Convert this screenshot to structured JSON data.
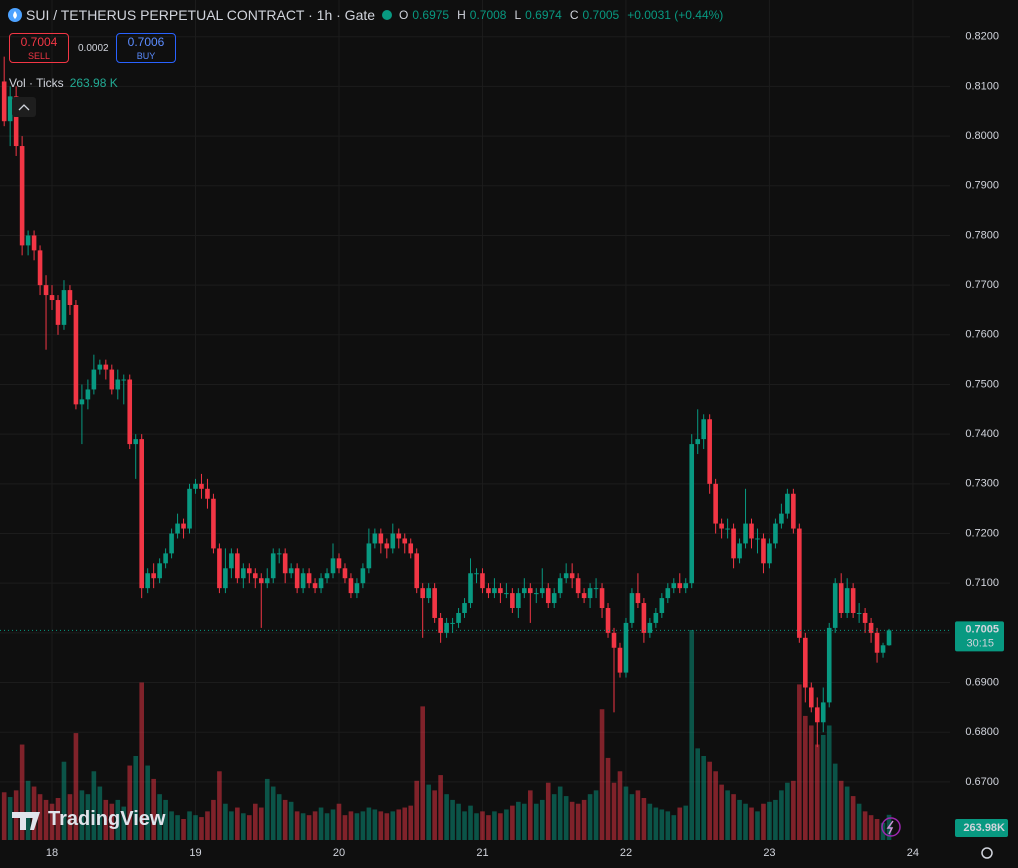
{
  "header": {
    "title": "SUI / TETHERUS PERPETUAL CONTRACT · 1h · Gate",
    "o_key": "O",
    "o": "0.6975",
    "h_key": "H",
    "h": "0.7008",
    "l_key": "L",
    "l": "0.6974",
    "c_key": "C",
    "c": "0.7005",
    "change": "+0.0031 (+0.44%)"
  },
  "trade": {
    "sell_price": "0.7004",
    "sell": "SELL",
    "spread": "0.0002",
    "buy_price": "0.7006",
    "buy": "BUY"
  },
  "volume_legend": {
    "label": "Vol · Ticks",
    "value": "263.98 K"
  },
  "brand": "TradingView",
  "chart_data": {
    "type": "candlestick",
    "x": [
      -8,
      -7,
      -6,
      -5,
      -4,
      -3,
      -2,
      -1,
      0,
      1,
      2,
      3,
      4,
      5,
      6,
      7,
      8,
      9,
      10,
      11,
      12,
      13,
      14,
      15,
      16,
      17,
      18,
      19,
      20,
      21,
      22,
      23,
      24,
      25,
      26,
      27,
      28,
      29,
      30,
      31,
      32,
      33,
      34,
      35,
      36,
      37,
      38,
      39,
      40,
      41,
      42,
      43,
      44,
      45,
      46,
      47,
      48,
      49,
      50,
      51,
      52,
      53,
      54,
      55,
      56,
      57,
      58,
      59,
      60,
      61,
      62,
      63,
      64,
      65,
      66,
      67,
      68,
      69,
      70,
      71,
      72,
      73,
      74,
      75,
      76,
      77,
      78,
      79,
      80,
      81,
      82,
      83,
      84,
      85,
      86,
      87,
      88,
      89,
      90,
      91,
      92,
      93,
      94,
      95,
      96,
      97,
      98,
      99,
      100,
      101,
      102,
      103,
      104,
      105,
      106,
      107,
      108,
      109,
      110,
      111,
      112,
      113,
      114,
      115,
      116,
      117,
      118,
      119,
      120,
      121,
      122,
      123,
      124,
      125,
      126,
      127,
      128,
      129,
      130,
      131,
      132,
      133,
      134,
      135,
      136,
      137,
      138,
      139,
      140
    ],
    "open": [
      0.811,
      0.803,
      0.808,
      0.798,
      0.778,
      0.78,
      0.777,
      0.77,
      0.768,
      0.767,
      0.762,
      0.769,
      0.766,
      0.746,
      0.747,
      0.749,
      0.753,
      0.754,
      0.753,
      0.749,
      0.751,
      0.751,
      0.738,
      0.739,
      0.709,
      0.712,
      0.711,
      0.714,
      0.716,
      0.72,
      0.722,
      0.721,
      0.729,
      0.73,
      0.729,
      0.727,
      0.717,
      0.709,
      0.713,
      0.716,
      0.711,
      0.713,
      0.712,
      0.711,
      0.71,
      0.711,
      0.716,
      0.716,
      0.712,
      0.713,
      0.709,
      0.712,
      0.71,
      0.709,
      0.711,
      0.712,
      0.715,
      0.713,
      0.711,
      0.708,
      0.71,
      0.713,
      0.718,
      0.72,
      0.718,
      0.717,
      0.72,
      0.719,
      0.718,
      0.716,
      0.709,
      0.707,
      0.709,
      0.703,
      0.7,
      0.702,
      0.702,
      0.704,
      0.706,
      0.712,
      0.712,
      0.709,
      0.708,
      0.709,
      0.708,
      0.708,
      0.705,
      0.708,
      0.709,
      0.708,
      0.708,
      0.709,
      0.706,
      0.708,
      0.711,
      0.712,
      0.711,
      0.708,
      0.707,
      0.709,
      0.709,
      0.705,
      0.7,
      0.697,
      0.692,
      0.702,
      0.708,
      0.706,
      0.7,
      0.702,
      0.704,
      0.707,
      0.709,
      0.71,
      0.709,
      0.71,
      0.738,
      0.739,
      0.743,
      0.73,
      0.722,
      0.721,
      0.721,
      0.715,
      0.718,
      0.722,
      0.719,
      0.719,
      0.714,
      0.718,
      0.722,
      0.724,
      0.728,
      0.721,
      0.699,
      0.689,
      0.685,
      0.682,
      0.686,
      0.701,
      0.71,
      0.704,
      0.709,
      0.704,
      0.704,
      0.702,
      0.7,
      0.696,
      0.6975
    ],
    "high": [
      0.816,
      0.81,
      0.81,
      0.8,
      0.781,
      0.781,
      0.778,
      0.772,
      0.77,
      0.768,
      0.771,
      0.77,
      0.767,
      0.75,
      0.751,
      0.756,
      0.755,
      0.755,
      0.754,
      0.753,
      0.752,
      0.752,
      0.74,
      0.74,
      0.713,
      0.714,
      0.715,
      0.717,
      0.721,
      0.724,
      0.723,
      0.73,
      0.731,
      0.732,
      0.731,
      0.728,
      0.718,
      0.717,
      0.717,
      0.717,
      0.714,
      0.714,
      0.713,
      0.712,
      0.713,
      0.717,
      0.717,
      0.717,
      0.714,
      0.714,
      0.713,
      0.713,
      0.711,
      0.712,
      0.713,
      0.718,
      0.716,
      0.714,
      0.712,
      0.711,
      0.714,
      0.721,
      0.721,
      0.721,
      0.719,
      0.722,
      0.721,
      0.72,
      0.719,
      0.717,
      0.71,
      0.71,
      0.71,
      0.704,
      0.703,
      0.703,
      0.705,
      0.707,
      0.715,
      0.713,
      0.713,
      0.71,
      0.711,
      0.71,
      0.71,
      0.709,
      0.709,
      0.711,
      0.71,
      0.709,
      0.713,
      0.71,
      0.709,
      0.712,
      0.714,
      0.714,
      0.712,
      0.709,
      0.71,
      0.711,
      0.71,
      0.706,
      0.701,
      0.698,
      0.703,
      0.709,
      0.712,
      0.707,
      0.703,
      0.705,
      0.708,
      0.71,
      0.711,
      0.712,
      0.711,
      0.74,
      0.745,
      0.744,
      0.744,
      0.731,
      0.723,
      0.723,
      0.722,
      0.719,
      0.729,
      0.723,
      0.721,
      0.72,
      0.719,
      0.723,
      0.726,
      0.729,
      0.729,
      0.722,
      0.7,
      0.69,
      0.687,
      0.689,
      0.702,
      0.711,
      0.712,
      0.711,
      0.71,
      0.706,
      0.705,
      0.703,
      0.701,
      0.698,
      0.7008
    ],
    "low": [
      0.802,
      0.798,
      0.796,
      0.776,
      0.776,
      0.775,
      0.768,
      0.757,
      0.765,
      0.76,
      0.761,
      0.764,
      0.745,
      0.738,
      0.745,
      0.748,
      0.752,
      0.751,
      0.748,
      0.747,
      0.746,
      0.737,
      0.731,
      0.707,
      0.708,
      0.709,
      0.71,
      0.713,
      0.715,
      0.719,
      0.719,
      0.72,
      0.728,
      0.727,
      0.725,
      0.716,
      0.708,
      0.708,
      0.711,
      0.71,
      0.709,
      0.71,
      0.709,
      0.701,
      0.709,
      0.71,
      0.714,
      0.71,
      0.711,
      0.708,
      0.708,
      0.709,
      0.708,
      0.708,
      0.71,
      0.711,
      0.712,
      0.71,
      0.707,
      0.707,
      0.709,
      0.712,
      0.717,
      0.716,
      0.715,
      0.716,
      0.717,
      0.716,
      0.715,
      0.708,
      0.699,
      0.706,
      0.702,
      0.698,
      0.699,
      0.7,
      0.701,
      0.703,
      0.705,
      0.71,
      0.708,
      0.707,
      0.707,
      0.706,
      0.707,
      0.704,
      0.703,
      0.707,
      0.702,
      0.706,
      0.707,
      0.705,
      0.705,
      0.707,
      0.71,
      0.709,
      0.707,
      0.706,
      0.705,
      0.707,
      0.703,
      0.699,
      0.684,
      0.691,
      0.691,
      0.701,
      0.705,
      0.698,
      0.699,
      0.701,
      0.703,
      0.706,
      0.708,
      0.708,
      0.708,
      0.709,
      0.736,
      0.737,
      0.728,
      0.72,
      0.719,
      0.719,
      0.713,
      0.714,
      0.717,
      0.717,
      0.716,
      0.712,
      0.713,
      0.717,
      0.721,
      0.723,
      0.72,
      0.698,
      0.686,
      0.684,
      0.677,
      0.68,
      0.685,
      0.7,
      0.703,
      0.703,
      0.703,
      0.702,
      0.7,
      0.698,
      0.694,
      0.695,
      0.6974
    ],
    "close": [
      0.803,
      0.808,
      0.798,
      0.778,
      0.78,
      0.777,
      0.77,
      0.768,
      0.767,
      0.762,
      0.769,
      0.766,
      0.746,
      0.747,
      0.749,
      0.753,
      0.754,
      0.753,
      0.749,
      0.751,
      0.751,
      0.738,
      0.739,
      0.709,
      0.712,
      0.711,
      0.714,
      0.716,
      0.72,
      0.722,
      0.721,
      0.729,
      0.73,
      0.729,
      0.727,
      0.717,
      0.709,
      0.713,
      0.716,
      0.711,
      0.713,
      0.712,
      0.711,
      0.71,
      0.711,
      0.716,
      0.716,
      0.712,
      0.713,
      0.709,
      0.712,
      0.71,
      0.709,
      0.711,
      0.712,
      0.715,
      0.713,
      0.711,
      0.708,
      0.71,
      0.713,
      0.718,
      0.72,
      0.718,
      0.717,
      0.72,
      0.719,
      0.718,
      0.716,
      0.709,
      0.707,
      0.709,
      0.703,
      0.7,
      0.702,
      0.702,
      0.704,
      0.706,
      0.712,
      0.712,
      0.709,
      0.708,
      0.709,
      0.708,
      0.708,
      0.705,
      0.708,
      0.709,
      0.708,
      0.708,
      0.709,
      0.706,
      0.708,
      0.711,
      0.712,
      0.711,
      0.708,
      0.707,
      0.709,
      0.709,
      0.705,
      0.7,
      0.697,
      0.692,
      0.702,
      0.708,
      0.706,
      0.7,
      0.702,
      0.704,
      0.707,
      0.709,
      0.71,
      0.709,
      0.71,
      0.738,
      0.739,
      0.743,
      0.73,
      0.722,
      0.721,
      0.721,
      0.715,
      0.718,
      0.722,
      0.719,
      0.719,
      0.714,
      0.718,
      0.722,
      0.724,
      0.728,
      0.721,
      0.699,
      0.689,
      0.685,
      0.682,
      0.686,
      0.701,
      0.71,
      0.704,
      0.709,
      0.704,
      0.704,
      0.702,
      0.7,
      0.696,
      0.6975,
      0.7005
    ],
    "volume": [
      500,
      450,
      520,
      1000,
      620,
      560,
      480,
      420,
      380,
      440,
      820,
      480,
      1120,
      520,
      480,
      720,
      560,
      420,
      380,
      420,
      350,
      780,
      880,
      1650,
      780,
      640,
      480,
      420,
      300,
      260,
      220,
      300,
      260,
      240,
      300,
      420,
      720,
      380,
      300,
      340,
      280,
      260,
      380,
      340,
      640,
      560,
      480,
      420,
      400,
      300,
      280,
      260,
      300,
      340,
      280,
      320,
      380,
      260,
      300,
      280,
      300,
      340,
      320,
      300,
      280,
      300,
      320,
      340,
      360,
      620,
      1400,
      580,
      520,
      680,
      480,
      420,
      380,
      300,
      360,
      280,
      300,
      260,
      300,
      280,
      320,
      360,
      400,
      380,
      520,
      380,
      420,
      600,
      480,
      560,
      460,
      400,
      380,
      420,
      480,
      520,
      1370,
      860,
      600,
      720,
      560,
      480,
      520,
      440,
      380,
      340,
      320,
      300,
      260,
      340,
      360,
      2200,
      960,
      880,
      820,
      720,
      580,
      520,
      480,
      420,
      380,
      340,
      300,
      380,
      400,
      420,
      520,
      600,
      620,
      1630,
      1300,
      1200,
      1000,
      1100,
      1200,
      800,
      620,
      560,
      460,
      380,
      300,
      260,
      220,
      180,
      263.98
    ],
    "up_color": "#089981",
    "down_color": "#f23645",
    "xlim": [
      -8.7,
      150.2
    ],
    "xticks": [
      {
        "value": 0,
        "label": "18"
      },
      {
        "value": 24,
        "label": "19"
      },
      {
        "value": 48,
        "label": "20"
      },
      {
        "value": 72,
        "label": "21"
      },
      {
        "value": 96,
        "label": "22"
      },
      {
        "value": 120,
        "label": "23"
      },
      {
        "value": 144,
        "label": "24"
      }
    ],
    "ylim": [
      0.6583,
      0.8274
    ],
    "yticks": [
      {
        "value": 0.82,
        "label": "0.8200"
      },
      {
        "value": 0.81,
        "label": "0.8100"
      },
      {
        "value": 0.8,
        "label": "0.8000"
      },
      {
        "value": 0.79,
        "label": "0.7900"
      },
      {
        "value": 0.78,
        "label": "0.7800"
      },
      {
        "value": 0.77,
        "label": "0.7700"
      },
      {
        "value": 0.76,
        "label": "0.7600"
      },
      {
        "value": 0.75,
        "label": "0.7500"
      },
      {
        "value": 0.74,
        "label": "0.7400"
      },
      {
        "value": 0.73,
        "label": "0.7300"
      },
      {
        "value": 0.72,
        "label": "0.7200"
      },
      {
        "value": 0.71,
        "label": "0.7100"
      },
      {
        "value": 0.7,
        "label": "0.7000"
      },
      {
        "value": 0.69,
        "label": "0.6900"
      },
      {
        "value": 0.68,
        "label": "0.6800"
      },
      {
        "value": 0.67,
        "label": "0.6700"
      }
    ],
    "grid": true,
    "last_price": {
      "value": 0.7005,
      "label": "0.7005"
    },
    "countdown": "30:15",
    "volume_tag": "263.98K"
  }
}
